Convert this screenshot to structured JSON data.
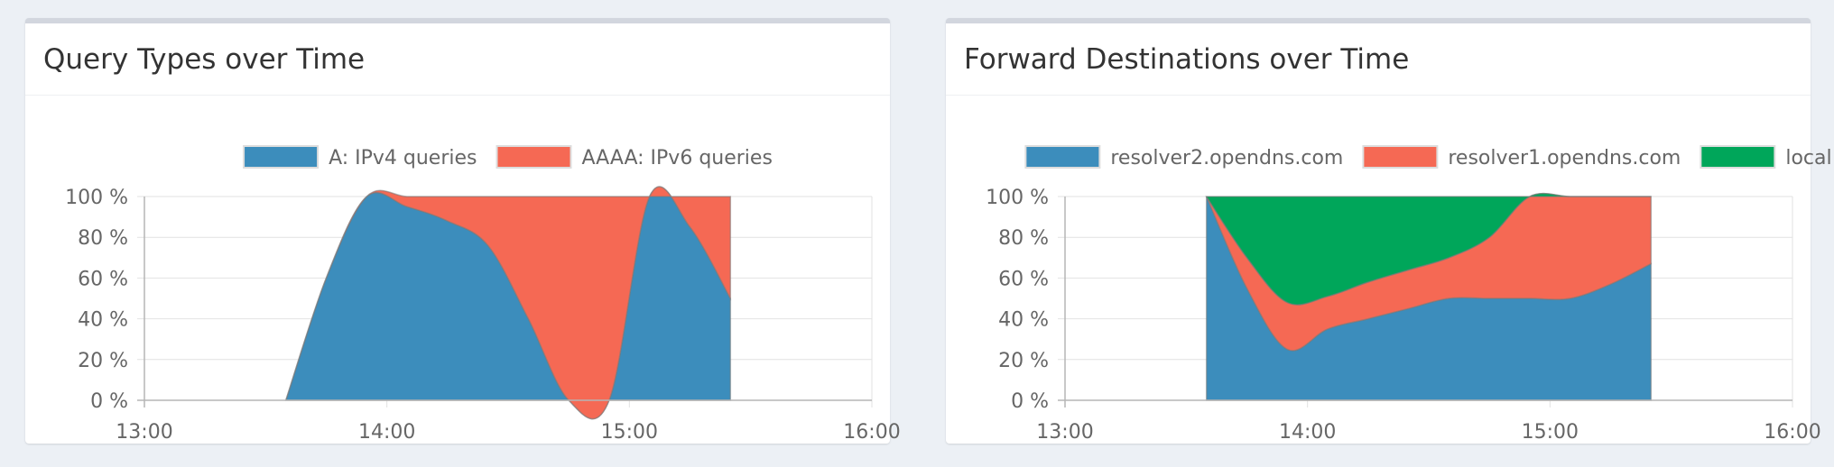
{
  "panels": [
    {
      "title": "Query Types over Time",
      "chart_data": {
        "type": "area",
        "stacked": true,
        "x": [
          "13:35",
          "13:45",
          "13:55",
          "14:05",
          "14:15",
          "14:25",
          "14:35",
          "14:45",
          "14:55",
          "15:05",
          "15:15",
          "15:25"
        ],
        "xticks": [
          "13:00",
          "14:00",
          "15:00",
          "16:00"
        ],
        "xlim": [
          "13:00",
          "16:00"
        ],
        "yticks": [
          "0 %",
          "20 %",
          "40 %",
          "60 %",
          "80 %",
          "100 %"
        ],
        "ylim": [
          0,
          100
        ],
        "legend_position": "top",
        "series": [
          {
            "name": "A: IPv4 queries",
            "color": "#3c8dbc",
            "values": [
              0,
              60,
              100,
              95,
              88,
              76,
              40,
              0,
              0,
              100,
              85,
              50
            ]
          },
          {
            "name": "AAAA: IPv6 queries",
            "color": "#f56954",
            "values": [
              0,
              0,
              0,
              5,
              12,
              24,
              60,
              100,
              100,
              0,
              15,
              50
            ]
          }
        ]
      }
    },
    {
      "title": "Forward Destinations over Time",
      "chart_data": {
        "type": "area",
        "stacked": true,
        "x": [
          "13:35",
          "13:45",
          "13:55",
          "14:05",
          "14:15",
          "14:25",
          "14:35",
          "14:45",
          "14:55",
          "15:05",
          "15:15",
          "15:25"
        ],
        "xticks": [
          "13:00",
          "14:00",
          "15:00",
          "16:00"
        ],
        "xlim": [
          "13:00",
          "16:00"
        ],
        "yticks": [
          "0 %",
          "20 %",
          "40 %",
          "60 %",
          "80 %",
          "100 %"
        ],
        "ylim": [
          0,
          100
        ],
        "legend_position": "top",
        "series": [
          {
            "name": "resolver2.opendns.com",
            "color": "#3c8dbc",
            "values": [
              100,
              55,
              25,
              35,
              40,
              45,
              50,
              50,
              50,
              50,
              57,
              67
            ]
          },
          {
            "name": "resolver1.opendns.com",
            "color": "#f56954",
            "values": [
              0,
              15,
              23,
              16,
              18,
              19,
              20,
              30,
              50,
              50,
              43,
              33
            ]
          },
          {
            "name": "local",
            "color": "#00a65a",
            "values": [
              0,
              30,
              52,
              49,
              42,
              36,
              30,
              20,
              0,
              0,
              0,
              0
            ]
          }
        ]
      }
    }
  ]
}
